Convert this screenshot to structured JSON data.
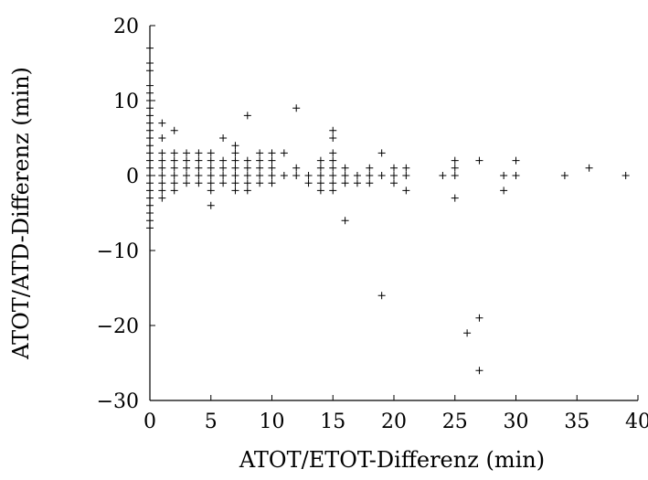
{
  "chart_data": {
    "type": "scatter",
    "marker": "+",
    "xlabel": "ATOT/ETOT-Differenz (min)",
    "ylabel": "ATOT/ATD-Differenz (min)",
    "xlim": [
      0,
      40
    ],
    "ylim": [
      -30,
      20
    ],
    "xticks": [
      0,
      5,
      10,
      15,
      20,
      25,
      30,
      35,
      40
    ],
    "yticks": [
      -30,
      -20,
      -10,
      0,
      10,
      20
    ],
    "xtick_labels": [
      "0",
      "5",
      "10",
      "15",
      "20",
      "25",
      "30",
      "35",
      "40"
    ],
    "ytick_labels": [
      "−30",
      "−20",
      "−10",
      "0",
      "10",
      "20"
    ],
    "grid": false,
    "points": [
      [
        0,
        17
      ],
      [
        0,
        15
      ],
      [
        0,
        14
      ],
      [
        0,
        12
      ],
      [
        0,
        11
      ],
      [
        0,
        10
      ],
      [
        0,
        9
      ],
      [
        0,
        8
      ],
      [
        0,
        7
      ],
      [
        0,
        6
      ],
      [
        0,
        5
      ],
      [
        0,
        4
      ],
      [
        0,
        3
      ],
      [
        0,
        2
      ],
      [
        0,
        1
      ],
      [
        0,
        0
      ],
      [
        0,
        -1
      ],
      [
        0,
        -2
      ],
      [
        0,
        -3
      ],
      [
        0,
        -4
      ],
      [
        0,
        -5
      ],
      [
        0,
        -6
      ],
      [
        0,
        -7
      ],
      [
        1,
        7
      ],
      [
        1,
        5
      ],
      [
        1,
        3
      ],
      [
        1,
        2
      ],
      [
        1,
        1
      ],
      [
        1,
        0
      ],
      [
        1,
        -1
      ],
      [
        1,
        -2
      ],
      [
        1,
        -3
      ],
      [
        2,
        6
      ],
      [
        2,
        3
      ],
      [
        2,
        2
      ],
      [
        2,
        1
      ],
      [
        2,
        0
      ],
      [
        2,
        -1
      ],
      [
        2,
        -2
      ],
      [
        3,
        3
      ],
      [
        3,
        2
      ],
      [
        3,
        1
      ],
      [
        3,
        0
      ],
      [
        3,
        -1
      ],
      [
        4,
        3
      ],
      [
        4,
        2
      ],
      [
        4,
        1
      ],
      [
        4,
        0
      ],
      [
        4,
        -1
      ],
      [
        5,
        3
      ],
      [
        5,
        2
      ],
      [
        5,
        1
      ],
      [
        5,
        0
      ],
      [
        5,
        -1
      ],
      [
        5,
        -2
      ],
      [
        5,
        -4
      ],
      [
        6,
        5
      ],
      [
        6,
        2
      ],
      [
        6,
        1
      ],
      [
        6,
        0
      ],
      [
        6,
        -1
      ],
      [
        7,
        4
      ],
      [
        7,
        3
      ],
      [
        7,
        2
      ],
      [
        7,
        1
      ],
      [
        7,
        0
      ],
      [
        7,
        -1
      ],
      [
        7,
        -2
      ],
      [
        8,
        8
      ],
      [
        8,
        2
      ],
      [
        8,
        1
      ],
      [
        8,
        0
      ],
      [
        8,
        -1
      ],
      [
        8,
        -2
      ],
      [
        9,
        3
      ],
      [
        9,
        2
      ],
      [
        9,
        1
      ],
      [
        9,
        0
      ],
      [
        9,
        -1
      ],
      [
        10,
        3
      ],
      [
        10,
        2
      ],
      [
        10,
        1
      ],
      [
        10,
        0
      ],
      [
        10,
        -1
      ],
      [
        11,
        3
      ],
      [
        11,
        0
      ],
      [
        12,
        9
      ],
      [
        12,
        1
      ],
      [
        12,
        0
      ],
      [
        13,
        0
      ],
      [
        13,
        -1
      ],
      [
        14,
        2
      ],
      [
        14,
        1
      ],
      [
        14,
        0
      ],
      [
        14,
        -1
      ],
      [
        14,
        -2
      ],
      [
        15,
        6
      ],
      [
        15,
        5
      ],
      [
        15,
        3
      ],
      [
        15,
        2
      ],
      [
        15,
        1
      ],
      [
        15,
        0
      ],
      [
        15,
        -1
      ],
      [
        15,
        -2
      ],
      [
        16,
        1
      ],
      [
        16,
        0
      ],
      [
        16,
        -1
      ],
      [
        16,
        -6
      ],
      [
        17,
        0
      ],
      [
        17,
        -1
      ],
      [
        18,
        1
      ],
      [
        18,
        0
      ],
      [
        18,
        -1
      ],
      [
        19,
        3
      ],
      [
        19,
        0
      ],
      [
        19,
        -16
      ],
      [
        20,
        1
      ],
      [
        20,
        0
      ],
      [
        20,
        -1
      ],
      [
        21,
        1
      ],
      [
        21,
        0
      ],
      [
        21,
        -2
      ],
      [
        24,
        0
      ],
      [
        25,
        2
      ],
      [
        25,
        1
      ],
      [
        25,
        0
      ],
      [
        25,
        -3
      ],
      [
        26,
        -21
      ],
      [
        27,
        2
      ],
      [
        27,
        -19
      ],
      [
        27,
        -26
      ],
      [
        29,
        0
      ],
      [
        29,
        -2
      ],
      [
        30,
        2
      ],
      [
        30,
        0
      ],
      [
        34,
        0
      ],
      [
        36,
        1
      ],
      [
        39,
        0
      ]
    ]
  }
}
